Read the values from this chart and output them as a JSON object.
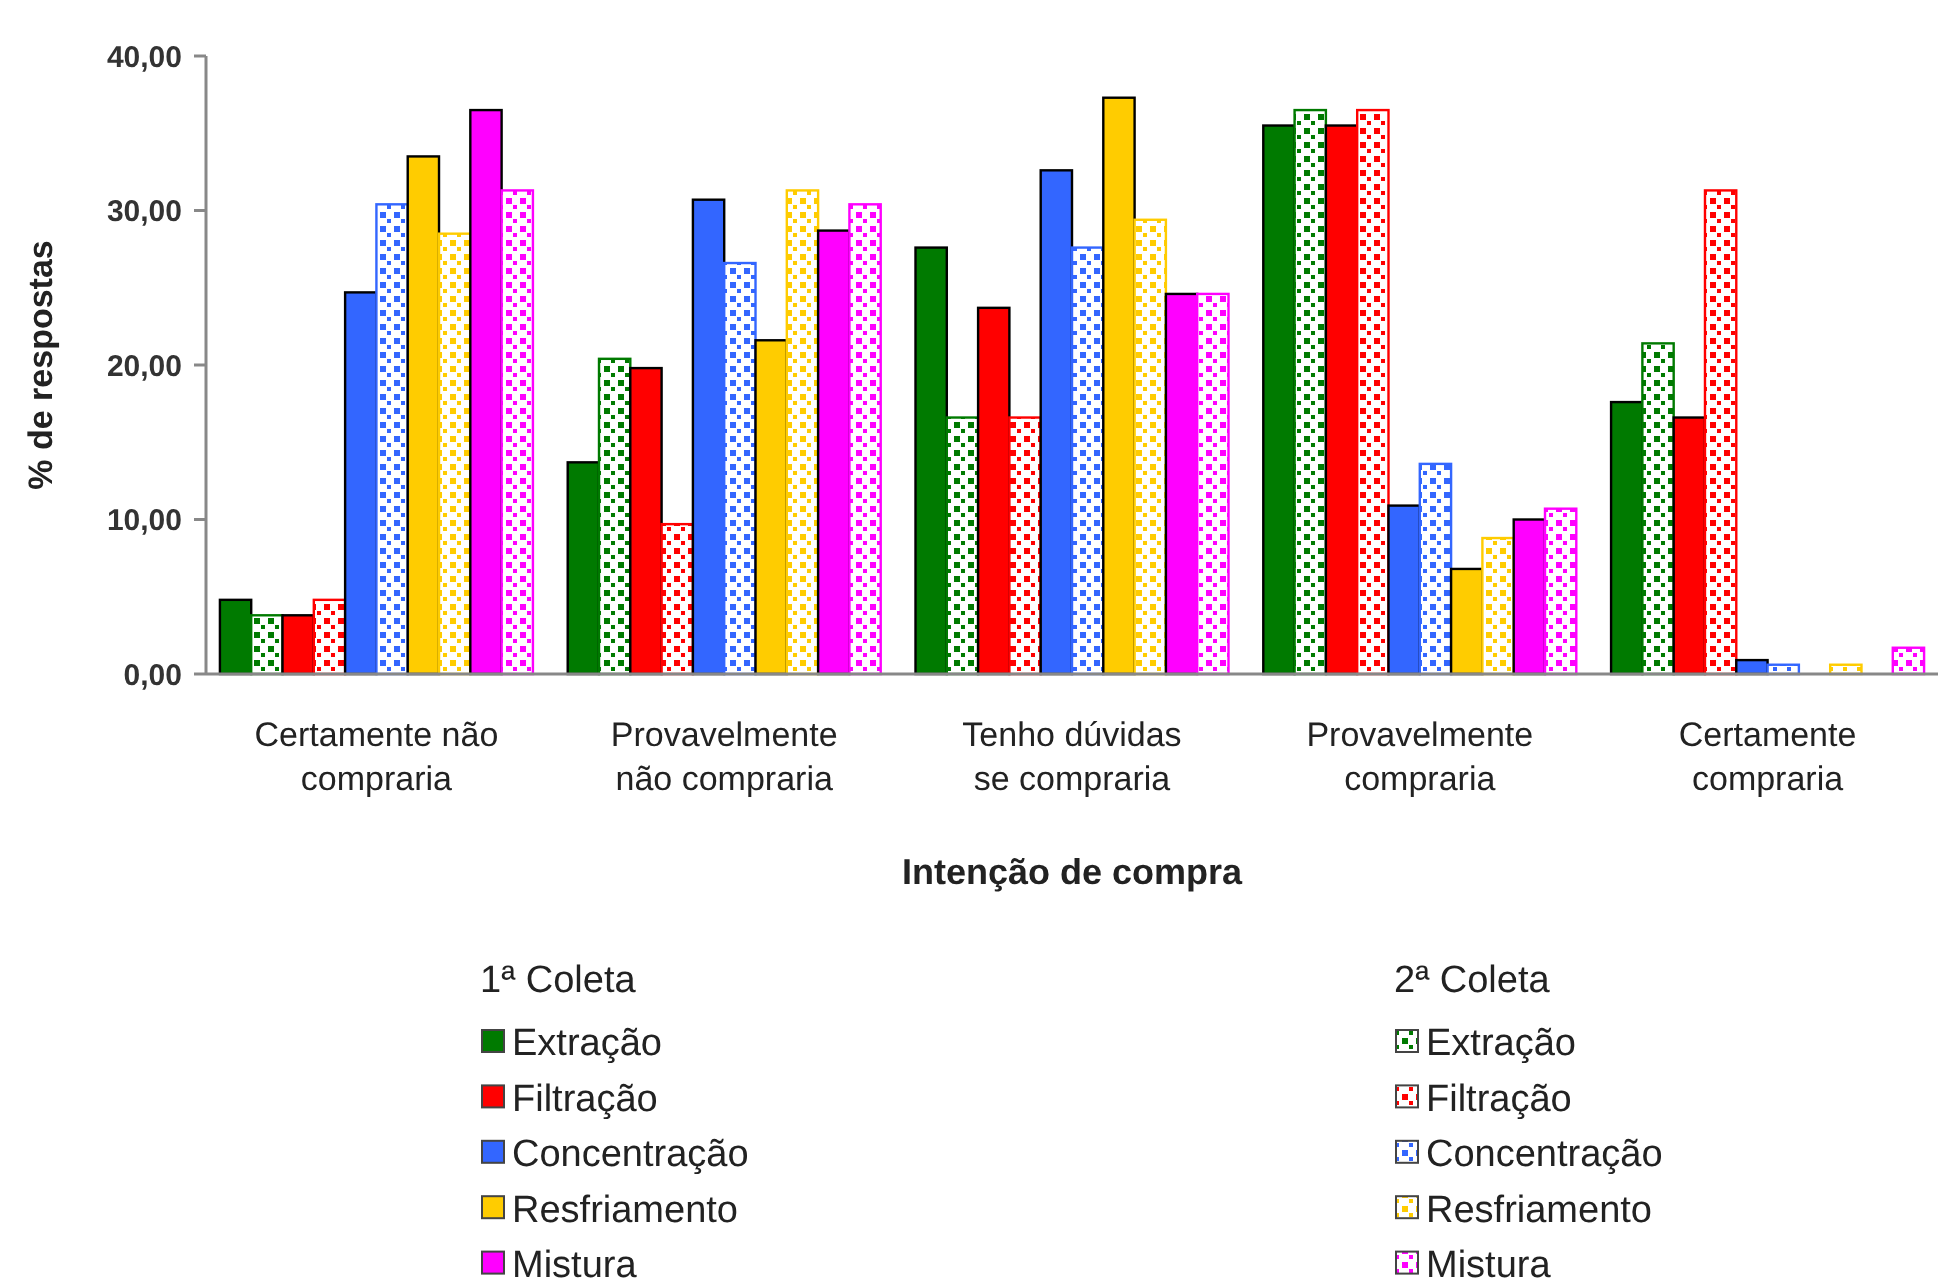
{
  "chart_data": {
    "type": "bar",
    "xlabel": "Intenção de compra",
    "ylabel": "% de respostas",
    "categories": [
      "Certamente não compraria",
      "Provavelmente não compraria",
      "Tenho dúvidas se compraria",
      "Provavelmente compraria",
      "Certamente compraria"
    ],
    "series": [
      {
        "name": "Extração",
        "color": "#007a00",
        "values": [
          4.8,
          13.7,
          27.6,
          35.5,
          17.6
        ]
      },
      {
        "name": "Extração",
        "color": "#007a00",
        "values": [
          3.8,
          20.4,
          16.6,
          36.5,
          21.4
        ]
      },
      {
        "name": "Filtração",
        "color": "#ff0000",
        "values": [
          3.8,
          19.8,
          23.7,
          35.5,
          16.6
        ]
      },
      {
        "name": "Filtração",
        "color": "#ff0000",
        "values": [
          4.8,
          9.7,
          16.6,
          36.5,
          31.3
        ]
      },
      {
        "name": "Concentração",
        "color": "#3366ff",
        "values": [
          24.7,
          30.7,
          32.6,
          10.9,
          0.9
        ]
      },
      {
        "name": "Concentração",
        "color": "#3366ff",
        "values": [
          30.4,
          26.6,
          27.6,
          13.6,
          0.6
        ]
      },
      {
        "name": "Resfriamento",
        "color": "#ffcc00",
        "values": [
          33.5,
          21.6,
          37.3,
          6.8,
          0
        ]
      },
      {
        "name": "Resfriamento",
        "color": "#ffcc00",
        "values": [
          28.5,
          31.3,
          29.4,
          8.8,
          0.6
        ]
      },
      {
        "name": "Mistura",
        "color": "#ff00ff",
        "values": [
          36.5,
          28.7,
          24.6,
          10.0,
          0
        ]
      },
      {
        "name": "Mistura",
        "color": "#ff00ff",
        "values": [
          31.3,
          30.4,
          24.6,
          10.7,
          1.7
        ]
      }
    ],
    "ylim": [
      0,
      40
    ],
    "yticks": [
      {
        "value": 0,
        "label": "0,00"
      },
      {
        "value": 10,
        "label": "10,00"
      },
      {
        "value": 20,
        "label": "20,00"
      },
      {
        "value": 30,
        "label": "30,00"
      },
      {
        "value": 40,
        "label": "40,00"
      }
    ],
    "grid": false,
    "legend": "bottom",
    "annotations": [
      "1ª Coleta",
      "2ª Coleta"
    ]
  }
}
